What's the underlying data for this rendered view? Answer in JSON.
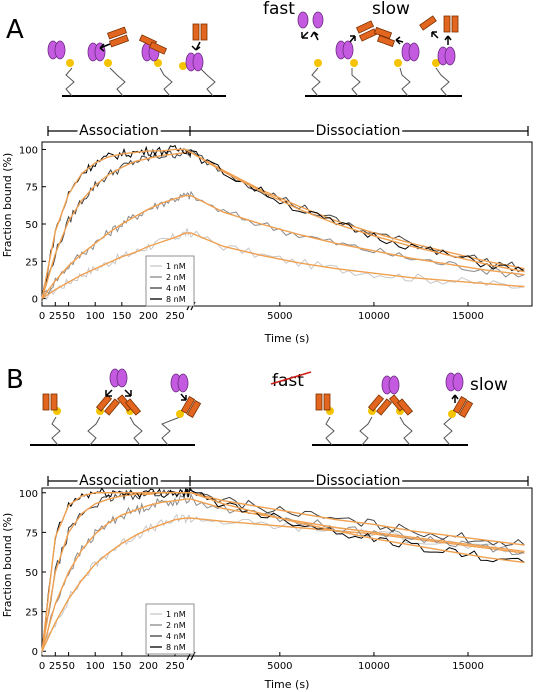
{
  "panels": [
    {
      "letter": "A",
      "schematic": {
        "fast_label": "fast",
        "slow_label": "slow"
      },
      "phases": {
        "association": "Association",
        "dissociation": "Dissociation"
      }
    },
    {
      "letter": "B",
      "schematic": {
        "fast_label": "fast",
        "slow_label": "slow"
      },
      "phases": {
        "association": "Association",
        "dissociation": "Dissociation"
      }
    }
  ],
  "colors": {
    "fit": "#f0a050",
    "nm1": "#c8c8c8",
    "nm2": "#8a8a8a",
    "nm4": "#404040",
    "nm8": "#000000",
    "nanobody": "#c45ae0",
    "antibody": "#e2661f",
    "dye": "#f5c400"
  },
  "chart_data": [
    {
      "type": "line",
      "panel": "A",
      "xlabel": "Time (s)",
      "ylabel": "Fraction bound (%)",
      "ylim": [
        -5,
        105
      ],
      "yticks": [
        0,
        25,
        50,
        75,
        100
      ],
      "x_segments": [
        {
          "phase": "association",
          "xlim": [
            0,
            280
          ],
          "ticks": [
            0,
            25,
            50,
            100,
            150,
            200,
            250
          ]
        },
        {
          "phase": "dissociation",
          "xlim": [
            280,
            18400
          ],
          "ticks": [
            5000,
            10000,
            15000
          ]
        }
      ],
      "legend": {
        "position": "lower-middle",
        "entries": [
          "1 nM",
          "2 nM",
          "4 nM",
          "8 nM"
        ]
      },
      "series": [
        {
          "name": "1 nM",
          "x": [
            0,
            25,
            50,
            75,
            100,
            125,
            150,
            175,
            200,
            225,
            250,
            270,
            280,
            2000,
            4000,
            6000,
            8000,
            10000,
            12000,
            14000,
            16000,
            18000
          ],
          "y": [
            0,
            6,
            11,
            16,
            20,
            24,
            28,
            31,
            35,
            38,
            41,
            44,
            44,
            35,
            29,
            24,
            20,
            17,
            14,
            12,
            10,
            8
          ]
        },
        {
          "name": "2 nM",
          "x": [
            0,
            25,
            50,
            75,
            100,
            125,
            150,
            175,
            200,
            225,
            250,
            270,
            280,
            2000,
            4000,
            6000,
            8000,
            10000,
            12000,
            14000,
            16000,
            18000
          ],
          "y": [
            0,
            12,
            22,
            30,
            37,
            44,
            50,
            55,
            60,
            64,
            67,
            69,
            69,
            58,
            50,
            43,
            37,
            32,
            27,
            23,
            19,
            16
          ]
        },
        {
          "name": "4 nM",
          "x": [
            0,
            25,
            50,
            75,
            100,
            125,
            150,
            175,
            200,
            225,
            250,
            270,
            280,
            2000,
            4000,
            6000,
            8000,
            10000,
            12000,
            14000,
            16000,
            18000
          ],
          "y": [
            0,
            30,
            52,
            66,
            76,
            83,
            88,
            92,
            94,
            96,
            97,
            98,
            98,
            86,
            73,
            62,
            52,
            44,
            37,
            31,
            25,
            20
          ]
        },
        {
          "name": "8 nM",
          "x": [
            0,
            25,
            50,
            75,
            100,
            125,
            150,
            175,
            200,
            225,
            250,
            270,
            280,
            2000,
            4000,
            6000,
            8000,
            10000,
            12000,
            14000,
            16000,
            18000
          ],
          "y": [
            0,
            45,
            70,
            84,
            91,
            95,
            97,
            98,
            99,
            99,
            100,
            100,
            98,
            85,
            72,
            60,
            50,
            42,
            35,
            29,
            23,
            18
          ]
        }
      ]
    },
    {
      "type": "line",
      "panel": "B",
      "xlabel": "Time (s)",
      "ylabel": "Fraction bound (%)",
      "ylim": [
        -3,
        103
      ],
      "yticks": [
        0,
        25,
        50,
        75,
        100
      ],
      "x_segments": [
        {
          "phase": "association",
          "xlim": [
            0,
            280
          ],
          "ticks": [
            0,
            25,
            50,
            100,
            150,
            200,
            250
          ]
        },
        {
          "phase": "dissociation",
          "xlim": [
            280,
            18400
          ],
          "ticks": [
            5000,
            10000,
            15000
          ]
        }
      ],
      "legend": {
        "position": "lower-middle",
        "entries": [
          "1 nM",
          "2 nM",
          "4 nM",
          "8 nM"
        ]
      },
      "series": [
        {
          "name": "1 nM",
          "x": [
            0,
            25,
            50,
            75,
            100,
            125,
            150,
            175,
            200,
            225,
            250,
            270,
            280,
            2000,
            4000,
            6000,
            8000,
            10000,
            12000,
            14000,
            16000,
            18000
          ],
          "y": [
            0,
            18,
            33,
            45,
            55,
            62,
            68,
            73,
            77,
            80,
            83,
            84,
            84,
            82,
            80,
            78,
            76,
            74,
            71,
            68,
            65,
            62
          ]
        },
        {
          "name": "2 nM",
          "x": [
            0,
            25,
            50,
            75,
            100,
            125,
            150,
            175,
            200,
            225,
            250,
            270,
            280,
            2000,
            4000,
            6000,
            8000,
            10000,
            12000,
            14000,
            16000,
            18000
          ],
          "y": [
            0,
            30,
            50,
            64,
            74,
            81,
            86,
            89,
            92,
            94,
            95,
            96,
            96,
            90,
            86,
            82,
            78,
            75,
            72,
            69,
            66,
            63
          ]
        },
        {
          "name": "4 nM",
          "x": [
            0,
            25,
            50,
            75,
            100,
            125,
            150,
            175,
            200,
            225,
            250,
            270,
            280,
            2000,
            4000,
            6000,
            8000,
            10000,
            12000,
            14000,
            16000,
            18000
          ],
          "y": [
            0,
            50,
            75,
            87,
            93,
            96,
            98,
            99,
            99,
            100,
            100,
            100,
            100,
            95,
            91,
            87,
            83,
            80,
            76,
            73,
            70,
            67
          ]
        },
        {
          "name": "8 nM",
          "x": [
            0,
            25,
            50,
            75,
            100,
            125,
            150,
            175,
            200,
            225,
            250,
            270,
            280,
            2000,
            4000,
            6000,
            8000,
            10000,
            12000,
            14000,
            16000,
            18000
          ],
          "y": [
            0,
            72,
            92,
            98,
            100,
            100,
            100,
            100,
            100,
            100,
            100,
            100,
            100,
            93,
            87,
            81,
            76,
            71,
            67,
            63,
            59,
            56
          ]
        }
      ]
    }
  ]
}
